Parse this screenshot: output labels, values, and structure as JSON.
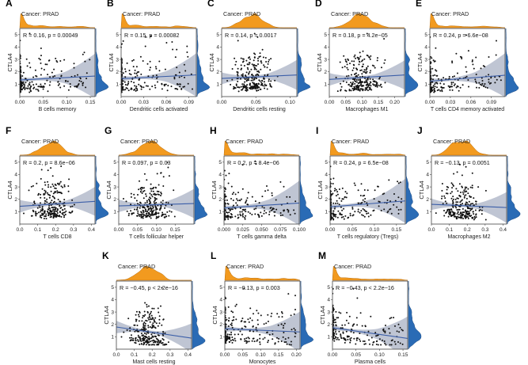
{
  "figure": {
    "cancer_label": "Cancer: PRAD",
    "y_label": "CTLA4"
  },
  "colors": {
    "density_fill": "#f29a1f",
    "density_right": "#2a6bb5",
    "point": "#111111",
    "reg_line": "#3b5ea8",
    "ci_band": "#aab2c4",
    "frame": "#444444"
  },
  "chart_data": [
    {
      "type": "scatter",
      "panel": "A",
      "title": "Cancer: PRAD",
      "xlabel": "B cells memory",
      "ylabel": "CTLA4",
      "annotation": "R = 0.16, p = 0.00049",
      "r": 0.16,
      "p": "0.00049",
      "xlim": [
        0,
        0.16
      ],
      "ylim": [
        0,
        5.5
      ],
      "xticks": [
        0.0,
        0.05,
        0.1,
        0.15
      ],
      "xtick_labels": [
        "0.00",
        "0.05",
        "0.10",
        "0.15"
      ],
      "yticks": [
        1,
        2,
        3,
        4,
        5
      ],
      "seed": 11,
      "xdist": "zero",
      "ydist": "skew"
    },
    {
      "type": "scatter",
      "panel": "B",
      "title": "Cancer: PRAD",
      "xlabel": "Dendritic cells activated",
      "ylabel": "CTLA4",
      "annotation": "R = 0.15, p = 0.00082",
      "r": 0.15,
      "p": "0.00082",
      "xlim": [
        0,
        0.1
      ],
      "ylim": [
        0,
        5.5
      ],
      "xticks": [
        0.0,
        0.03,
        0.06,
        0.09
      ],
      "xtick_labels": [
        "0.00",
        "0.03",
        "0.06",
        "0.09"
      ],
      "yticks": [
        1,
        2,
        3,
        4,
        5
      ],
      "seed": 23,
      "xdist": "zero",
      "ydist": "skew"
    },
    {
      "type": "scatter",
      "panel": "C",
      "title": "Cancer: PRAD",
      "xlabel": "Dendritic cells resting",
      "ylabel": "CTLA4",
      "annotation": "R = 0.14, p = 0.0017",
      "r": 0.14,
      "p": "0.0017",
      "xlim": [
        0,
        0.11
      ],
      "ylim": [
        0,
        5.5
      ],
      "xticks": [
        0.0,
        0.05,
        0.1
      ],
      "xtick_labels": [
        "0.00",
        "0.05",
        "0.10"
      ],
      "yticks": [
        1,
        2,
        3,
        4,
        5
      ],
      "seed": 37,
      "xdist": "wide",
      "ydist": "skew"
    },
    {
      "type": "scatter",
      "panel": "D",
      "title": "Cancer: PRAD",
      "xlabel": "Macrophages M1",
      "ylabel": "CTLA4",
      "annotation": "R = 0.18, p = 4.2e−05",
      "r": 0.18,
      "p": "4.2e−05",
      "xlim": [
        0,
        0.23
      ],
      "ylim": [
        0,
        5.5
      ],
      "xticks": [
        0.0,
        0.05,
        0.1,
        0.15,
        0.2
      ],
      "xtick_labels": [
        "0.00",
        "0.05",
        "0.10",
        "0.15",
        "0.20"
      ],
      "yticks": [
        1,
        2,
        3,
        4,
        5
      ],
      "seed": 41,
      "xdist": "wide",
      "ydist": "skew"
    },
    {
      "type": "scatter",
      "panel": "E",
      "title": "Cancer: PRAD",
      "xlabel": "T cells CD4 memory activated",
      "ylabel": "CTLA4",
      "annotation": "R = 0.24, p = 6.6e−08",
      "r": 0.24,
      "p": "6.6e−08",
      "xlim": [
        0,
        0.11
      ],
      "ylim": [
        0,
        5.5
      ],
      "xticks": [
        0.0,
        0.03,
        0.06,
        0.09
      ],
      "xtick_labels": [
        "0.00",
        "0.03",
        "0.06",
        "0.09"
      ],
      "yticks": [
        1,
        2,
        3,
        4,
        5
      ],
      "seed": 53,
      "xdist": "zero",
      "ydist": "skew"
    },
    {
      "type": "scatter",
      "panel": "F",
      "title": "Cancer: PRAD",
      "xlabel": "T cells CD8",
      "ylabel": "CTLA4",
      "annotation": "R = 0.2, p = 8.6e−06",
      "r": 0.2,
      "p": "8.6e−06",
      "xlim": [
        0,
        0.42
      ],
      "ylim": [
        0,
        5.5
      ],
      "xticks": [
        0.0,
        0.1,
        0.2,
        0.3,
        0.4
      ],
      "xtick_labels": [
        "0.0",
        "0.1",
        "0.2",
        "0.3",
        "0.4"
      ],
      "yticks": [
        1,
        2,
        3,
        4,
        5
      ],
      "seed": 61,
      "xdist": "wide",
      "ydist": "skew"
    },
    {
      "type": "scatter",
      "panel": "G",
      "title": "Cancer: PRAD",
      "xlabel": "T cells follicular helper",
      "ylabel": "CTLA4",
      "annotation": "R = 0.097, p = 0.03",
      "r": 0.097,
      "p": "0.03",
      "xlim": [
        0,
        0.2
      ],
      "ylim": [
        0,
        5.5
      ],
      "xticks": [
        0.0,
        0.05,
        0.1,
        0.15
      ],
      "xtick_labels": [
        "0.00",
        "0.05",
        "0.10",
        "0.15"
      ],
      "yticks": [
        1,
        2,
        3,
        4,
        5
      ],
      "seed": 71,
      "xdist": "wide",
      "ydist": "skew"
    },
    {
      "type": "scatter",
      "panel": "H",
      "title": "Cancer: PRAD",
      "xlabel": "T cells gamma delta",
      "ylabel": "CTLA4",
      "annotation": "R = 0.2, p = 8.4e−06",
      "r": 0.2,
      "p": "8.4e−06",
      "xlim": [
        0,
        0.1
      ],
      "ylim": [
        0,
        5.5
      ],
      "xticks": [
        0.0,
        0.025,
        0.05,
        0.075,
        0.1
      ],
      "xtick_labels": [
        "0.000",
        "0.025",
        "0.050",
        "0.075",
        "0.100"
      ],
      "yticks": [
        1,
        2,
        3,
        4,
        5
      ],
      "seed": 83,
      "xdist": "zero",
      "ydist": "skew"
    },
    {
      "type": "scatter",
      "panel": "I",
      "title": "Cancer: PRAD",
      "xlabel": "T cells regulatory (Tregs)",
      "ylabel": "CTLA4",
      "annotation": "R = 0.24, p = 6.5e−08",
      "r": 0.24,
      "p": "6.5e−08",
      "xlim": [
        0,
        0.17
      ],
      "ylim": [
        0,
        5.5
      ],
      "xticks": [
        0.0,
        0.05,
        0.1,
        0.15
      ],
      "xtick_labels": [
        "0.00",
        "0.05",
        "0.10",
        "0.15"
      ],
      "yticks": [
        1,
        2,
        3,
        4,
        5
      ],
      "seed": 97,
      "xdist": "zero",
      "ydist": "skew"
    },
    {
      "type": "scatter",
      "panel": "J",
      "title": "Cancer: PRAD",
      "xlabel": "Macrophages M2",
      "ylabel": "CTLA4",
      "annotation": "R = −0.13, p = 0.0051",
      "r": -0.13,
      "p": "0.0051",
      "xlim": [
        0,
        0.42
      ],
      "ylim": [
        0,
        5.5
      ],
      "xticks": [
        0.0,
        0.1,
        0.2,
        0.3,
        0.4
      ],
      "xtick_labels": [
        "0.0",
        "0.1",
        "0.2",
        "0.3",
        "0.4"
      ],
      "yticks": [
        1,
        2,
        3,
        4,
        5
      ],
      "seed": 101,
      "xdist": "wide",
      "ydist": "skew"
    },
    {
      "type": "scatter",
      "panel": "K",
      "title": "Cancer: PRAD",
      "xlabel": "Mast cells resting",
      "ylabel": "CTLA4",
      "annotation": "R = −0.45, p < 2.2e−16",
      "r": -0.45,
      "p": "< 2.2e−16",
      "xlim": [
        0,
        0.42
      ],
      "ylim": [
        0,
        5.5
      ],
      "xticks": [
        0.0,
        0.1,
        0.2,
        0.3,
        0.4
      ],
      "xtick_labels": [
        "0.0",
        "0.1",
        "0.2",
        "0.3",
        "0.4"
      ],
      "yticks": [
        1,
        2,
        3,
        4,
        5
      ],
      "seed": 113,
      "xdist": "wide",
      "ydist": "skew"
    },
    {
      "type": "scatter",
      "panel": "L",
      "title": "Cancer: PRAD",
      "xlabel": "Monocytes",
      "ylabel": "CTLA4",
      "annotation": "R = −0.13, p = 0.003",
      "r": -0.13,
      "p": "0.003",
      "xlim": [
        0,
        0.21
      ],
      "ylim": [
        0,
        5.5
      ],
      "xticks": [
        0.0,
        0.05,
        0.1,
        0.15,
        0.2
      ],
      "xtick_labels": [
        "0.00",
        "0.05",
        "0.10",
        "0.15",
        "0.20"
      ],
      "yticks": [
        1,
        2,
        3,
        4,
        5
      ],
      "seed": 127,
      "xdist": "zero",
      "ydist": "skew"
    },
    {
      "type": "scatter",
      "panel": "M",
      "title": "Cancer: PRAD",
      "xlabel": "Plasma cells",
      "ylabel": "CTLA4",
      "annotation": "R = −0.43, p < 2.2e−16",
      "r": -0.43,
      "p": "< 2.2e−16",
      "xlim": [
        0,
        0.16
      ],
      "ylim": [
        0,
        5.5
      ],
      "xticks": [
        0.0,
        0.05,
        0.1,
        0.15
      ],
      "xtick_labels": [
        "0.00",
        "0.05",
        "0.10",
        "0.15"
      ],
      "yticks": [
        1,
        2,
        3,
        4,
        5
      ],
      "seed": 131,
      "xdist": "zero",
      "ydist": "skew"
    }
  ]
}
